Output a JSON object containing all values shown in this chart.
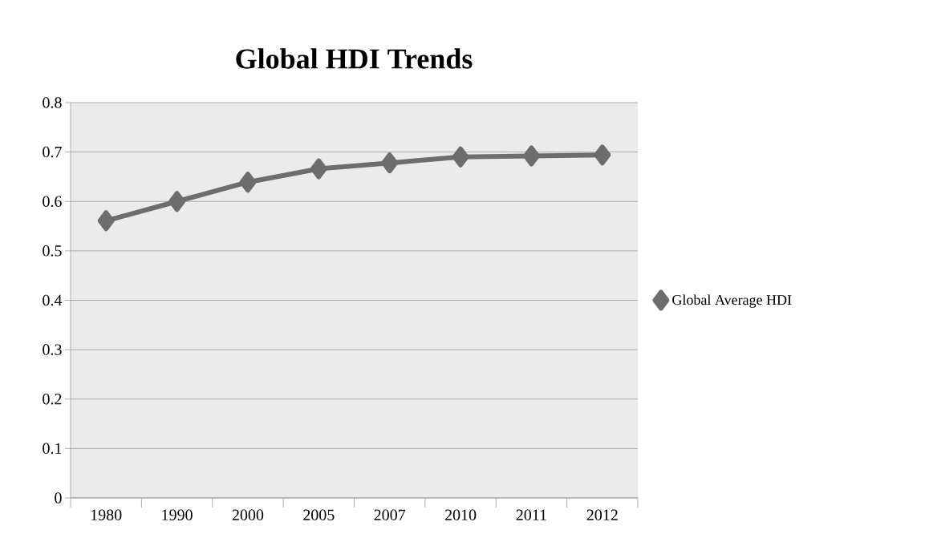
{
  "chart_data": {
    "type": "line",
    "title": "Global HDI Trends",
    "categories": [
      "1980",
      "1990",
      "2000",
      "2005",
      "2007",
      "2010",
      "2011",
      "2012"
    ],
    "series": [
      {
        "name": "Global Average HDI",
        "color": "#6d6d6d",
        "values": [
          0.561,
          0.6,
          0.639,
          0.666,
          0.678,
          0.69,
          0.692,
          0.694
        ]
      }
    ],
    "ylim": [
      0,
      0.8
    ],
    "yticks": [
      0,
      0.1,
      0.2,
      0.3,
      0.4,
      0.5,
      0.6,
      0.7,
      0.8
    ],
    "grid": "y",
    "legend": "right",
    "marker": "diamond",
    "line_style": "solid"
  }
}
